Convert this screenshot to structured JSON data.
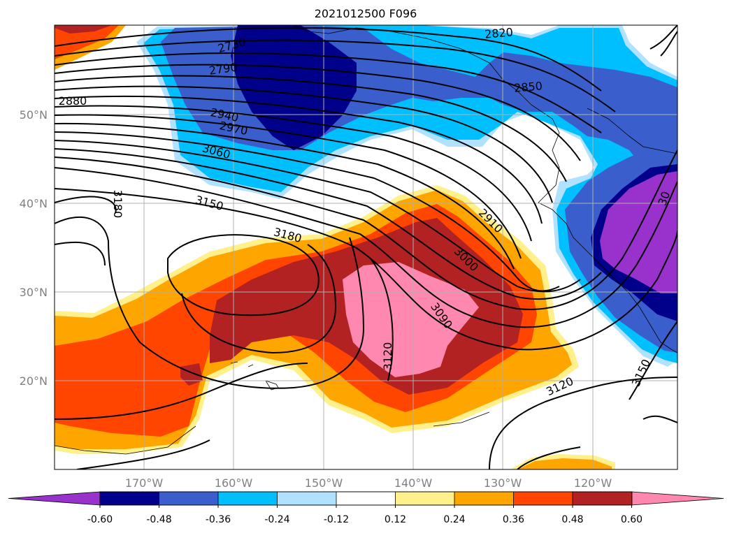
{
  "title": "2021012500 F096",
  "lat_labels": [
    {
      "text": "50°N",
      "lat": 50
    },
    {
      "text": "40°N",
      "lat": 40
    },
    {
      "text": "30°N",
      "lat": 30
    },
    {
      "text": "20°N",
      "lat": 20
    }
  ],
  "lon_labels": [
    {
      "text": "170°W",
      "lon": -170
    },
    {
      "text": "160°W",
      "lon": -160
    },
    {
      "text": "150°W",
      "lon": -150
    },
    {
      "text": "140°W",
      "lon": -140
    },
    {
      "text": "130°W",
      "lon": -130
    },
    {
      "text": "120°W",
      "lon": -120
    }
  ],
  "colorbar": {
    "colors": [
      "#9932cc",
      "#00008b",
      "#3a5fcd",
      "#00bfff",
      "#b0e2ff",
      "#ffffff",
      "#fff08c",
      "#ffa500",
      "#ff4500",
      "#b22222",
      "#ff88b0"
    ],
    "ticks": [
      "-0.60",
      "-0.48",
      "-0.36",
      "-0.24",
      "-0.12",
      "0.12",
      "0.24",
      "0.36",
      "0.48",
      "0.60"
    ]
  },
  "contour_labels": [
    {
      "text": "2820"
    },
    {
      "text": "2730"
    },
    {
      "text": "2790"
    },
    {
      "text": "2850"
    },
    {
      "text": "2880"
    },
    {
      "text": "2940"
    },
    {
      "text": "2970"
    },
    {
      "text": "3060"
    },
    {
      "text": "3150"
    },
    {
      "text": "3180"
    },
    {
      "text": "3180"
    },
    {
      "text": "2910"
    },
    {
      "text": "3000"
    },
    {
      "text": "3090"
    },
    {
      "text": "3120"
    },
    {
      "text": "3120"
    },
    {
      "text": "3150"
    },
    {
      "text": "30"
    }
  ]
}
